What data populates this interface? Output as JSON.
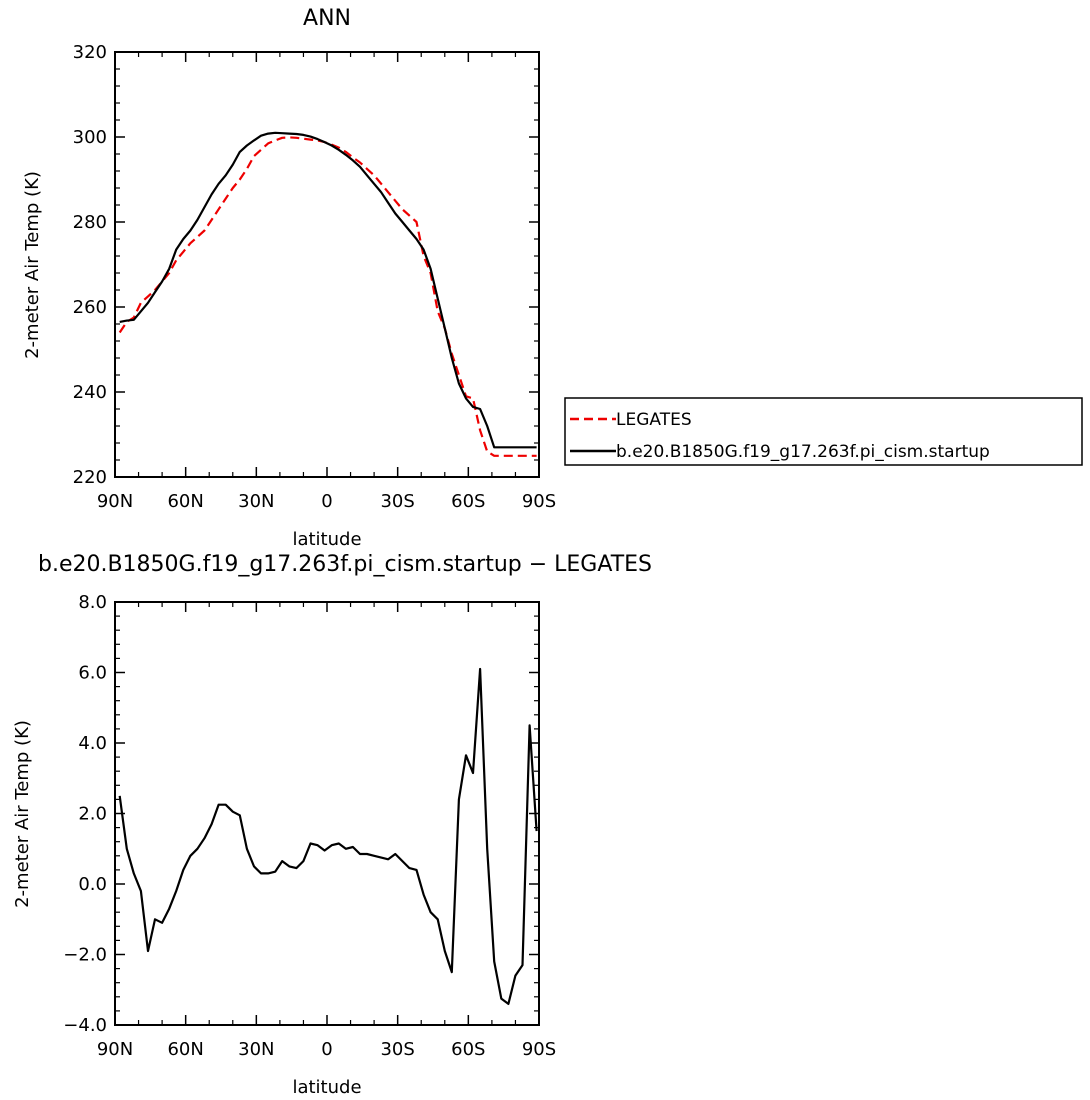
{
  "chart_data": [
    {
      "type": "line",
      "title": "ANN",
      "xlabel": "latitude",
      "ylabel": "2-meter Air Temp (K)",
      "x_tick_labels": [
        "90N",
        "60N",
        "30N",
        "0",
        "30S",
        "60S",
        "90S"
      ],
      "x_tick_values": [
        90,
        60,
        30,
        0,
        -30,
        -60,
        -90
      ],
      "xlim": [
        90,
        -90
      ],
      "y_tick_labels": [
        "220",
        "240",
        "260",
        "280",
        "300",
        "320"
      ],
      "y_tick_values": [
        220,
        240,
        260,
        280,
        300,
        320
      ],
      "ylim": [
        220,
        320
      ],
      "legend": {
        "position": "right"
      },
      "series": [
        {
          "name": "LEGATES",
          "color": "#ee0000",
          "dash": "dashed",
          "x": [
            88,
            85,
            82,
            79,
            76,
            73,
            70,
            67,
            64,
            61,
            58,
            55,
            52,
            49,
            46,
            43,
            40,
            37,
            34,
            31,
            28,
            25,
            22,
            19,
            16,
            13,
            10,
            7,
            4,
            1,
            -2,
            -5,
            -8,
            -11,
            -14,
            -17,
            -20,
            -23,
            -26,
            -29,
            -32,
            -35,
            -38,
            -41,
            -44,
            -47,
            -50,
            -53,
            -56,
            -59,
            -62,
            -65,
            -68,
            -71,
            -74,
            -77,
            -80,
            -83,
            -86,
            -89
          ],
          "y": [
            254.0,
            256.5,
            257.5,
            261.0,
            262.5,
            264.0,
            266.0,
            268.0,
            271.0,
            273.0,
            275.0,
            276.5,
            278.0,
            280.5,
            283.0,
            285.5,
            288.0,
            290.0,
            292.5,
            295.5,
            297.0,
            298.5,
            299.2,
            299.8,
            299.9,
            299.8,
            299.6,
            299.4,
            299.2,
            298.8,
            298.2,
            297.5,
            296.5,
            295.2,
            294.0,
            292.5,
            291.0,
            289.0,
            287.0,
            285.0,
            283.0,
            281.5,
            280.0,
            272.0,
            268.0,
            259.0,
            255.0,
            249.0,
            244.0,
            239.0,
            238.5,
            231.0,
            226.0,
            225.0,
            225.0,
            225.0,
            225.0,
            225.0,
            225.0,
            225.0
          ]
        },
        {
          "name": "b.e20.B1850G.f19_g17.263f.pi_cism.startup",
          "color": "#000000",
          "dash": "solid",
          "x": [
            88,
            85,
            82,
            79,
            76,
            73,
            70,
            67,
            64,
            61,
            58,
            55,
            52,
            49,
            46,
            43,
            40,
            37,
            34,
            31,
            28,
            25,
            22,
            19,
            16,
            13,
            10,
            7,
            4,
            1,
            -2,
            -5,
            -8,
            -11,
            -14,
            -17,
            -20,
            -23,
            -26,
            -29,
            -32,
            -35,
            -38,
            -41,
            -44,
            -47,
            -50,
            -53,
            -56,
            -59,
            -62,
            -65,
            -68,
            -71,
            -74,
            -77,
            -80,
            -83,
            -86,
            -89
          ],
          "y": [
            256.5,
            256.8,
            257.0,
            259.0,
            261.0,
            263.5,
            266.0,
            269.0,
            273.5,
            276.0,
            278.0,
            280.5,
            283.5,
            286.5,
            289.0,
            291.0,
            293.5,
            296.5,
            298.0,
            299.2,
            300.3,
            300.8,
            301.0,
            300.9,
            300.8,
            300.7,
            300.5,
            300.1,
            299.5,
            298.8,
            298.0,
            297.0,
            295.8,
            294.5,
            293.0,
            291.0,
            289.0,
            287.0,
            284.5,
            282.0,
            280.0,
            278.0,
            276.0,
            273.5,
            269.0,
            262.0,
            255.0,
            248.0,
            242.0,
            238.5,
            236.5,
            236.0,
            232.0,
            227.0,
            227.0,
            227.0,
            227.0,
            227.0,
            227.0,
            227.0
          ]
        }
      ]
    },
    {
      "type": "line",
      "title": "b.e20.B1850G.f19_g17.263f.pi_cism.startup − LEGATES",
      "xlabel": "latitude",
      "ylabel": "2-meter Air Temp (K)",
      "x_tick_labels": [
        "90N",
        "60N",
        "30N",
        "0",
        "30S",
        "60S",
        "90S"
      ],
      "x_tick_values": [
        90,
        60,
        30,
        0,
        -30,
        -60,
        -90
      ],
      "xlim": [
        90,
        -90
      ],
      "y_tick_labels": [
        "8.0",
        "6.0",
        "4.0",
        "2.0",
        "0.0",
        "−2.0",
        "−4.0"
      ],
      "y_tick_values": [
        8,
        6,
        4,
        2,
        0,
        -2,
        -4
      ],
      "ylim": [
        -4,
        8
      ],
      "series": [
        {
          "color": "#000000",
          "dash": "solid",
          "x": [
            88,
            85,
            82,
            79,
            76,
            73,
            70,
            67,
            64,
            61,
            58,
            55,
            52,
            49,
            46,
            43,
            40,
            37,
            34,
            31,
            28,
            25,
            22,
            19,
            16,
            13,
            10,
            7,
            4,
            1,
            -2,
            -5,
            -8,
            -11,
            -14,
            -17,
            -20,
            -23,
            -26,
            -29,
            -32,
            -35,
            -38,
            -41,
            -44,
            -47,
            -50,
            -53,
            -56,
            -59,
            -62,
            -65,
            -68,
            -71,
            -74,
            -77,
            -80,
            -83,
            -86,
            -89
          ],
          "y": [
            2.5,
            1.0,
            0.3,
            -0.2,
            -1.9,
            -1.0,
            -1.1,
            -0.7,
            -0.2,
            0.4,
            0.8,
            1.0,
            1.3,
            1.7,
            2.25,
            2.25,
            2.05,
            1.95,
            1.0,
            0.5,
            0.3,
            0.3,
            0.35,
            0.65,
            0.5,
            0.45,
            0.65,
            1.15,
            1.1,
            0.95,
            1.1,
            1.15,
            1.0,
            1.05,
            0.85,
            0.85,
            0.8,
            0.75,
            0.7,
            0.85,
            0.65,
            0.45,
            0.4,
            -0.3,
            -0.8,
            -1.0,
            -1.9,
            -2.5,
            2.4,
            3.65,
            3.15,
            6.1,
            1.0,
            -2.2,
            -3.25,
            -3.4,
            -2.6,
            -2.3,
            4.5,
            1.5
          ]
        }
      ]
    }
  ]
}
